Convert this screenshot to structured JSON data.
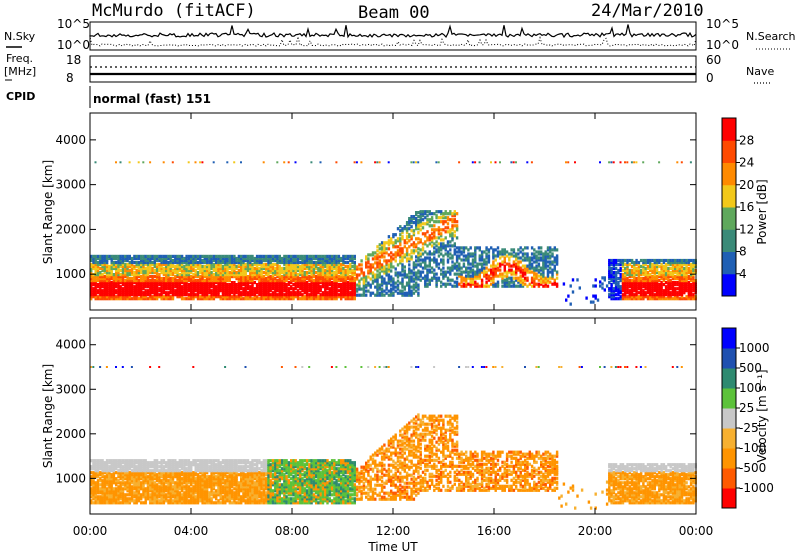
{
  "header": {
    "station": "McMurdo (fitACF)",
    "beam": "Beam 00",
    "date": "24/Mar/2010"
  },
  "noise_panel": {
    "left_label": "N.Sky",
    "right_label": "N.Search",
    "left_ticks": [
      "10^5",
      "10^0"
    ],
    "right_ticks": [
      "10^5",
      "10^0"
    ]
  },
  "freq_panel": {
    "left_label_1": "Freq.",
    "left_label_2": "[MHz]",
    "right_label": "Nave",
    "left_ticks": [
      "18",
      "8"
    ],
    "right_ticks": [
      "60",
      "0"
    ]
  },
  "cpid": {
    "label": "CPID",
    "text": "normal (fast) 151"
  },
  "colors": {
    "power_scale": [
      "#0000ff",
      "#1f5fb4",
      "#3a8a78",
      "#5fa85c",
      "#f2c81a",
      "#ff8a00",
      "#ff4a00",
      "#ff0000"
    ],
    "velocity_scale": [
      "#ff0000",
      "#ff5a00",
      "#ff9400",
      "#f7b030",
      "#c8c8c8",
      "#5cc23a",
      "#2e8a70",
      "#1f50b0",
      "#0000ff"
    ]
  },
  "chart_data": [
    {
      "type": "heatmap",
      "name": "power",
      "ylabel": "Slant Range [km]",
      "xlabel": "",
      "y_ticks": [
        1000,
        2000,
        3000,
        4000
      ],
      "ylim": [
        200,
        4600
      ],
      "x_ticks": [
        "00:00",
        "04:00",
        "08:00",
        "12:00",
        "16:00",
        "20:00",
        "00:00"
      ],
      "colorbar": {
        "label": "Power [dB]",
        "ticks": [
          "4",
          "8",
          "12",
          "16",
          "20",
          "24",
          "28"
        ]
      }
    },
    {
      "type": "heatmap",
      "name": "velocity",
      "ylabel": "Slant Range [km]",
      "xlabel": "Time UT",
      "y_ticks": [
        1000,
        2000,
        3000,
        4000
      ],
      "ylim": [
        200,
        4600
      ],
      "x_ticks": [
        "00:00",
        "04:00",
        "08:00",
        "12:00",
        "16:00",
        "20:00",
        "00:00"
      ],
      "colorbar": {
        "label": "Velocity [m s⁻¹]",
        "ticks": [
          "-1000",
          "-500",
          "-100",
          "-25",
          "25",
          "100",
          "500",
          "1000"
        ]
      }
    }
  ]
}
